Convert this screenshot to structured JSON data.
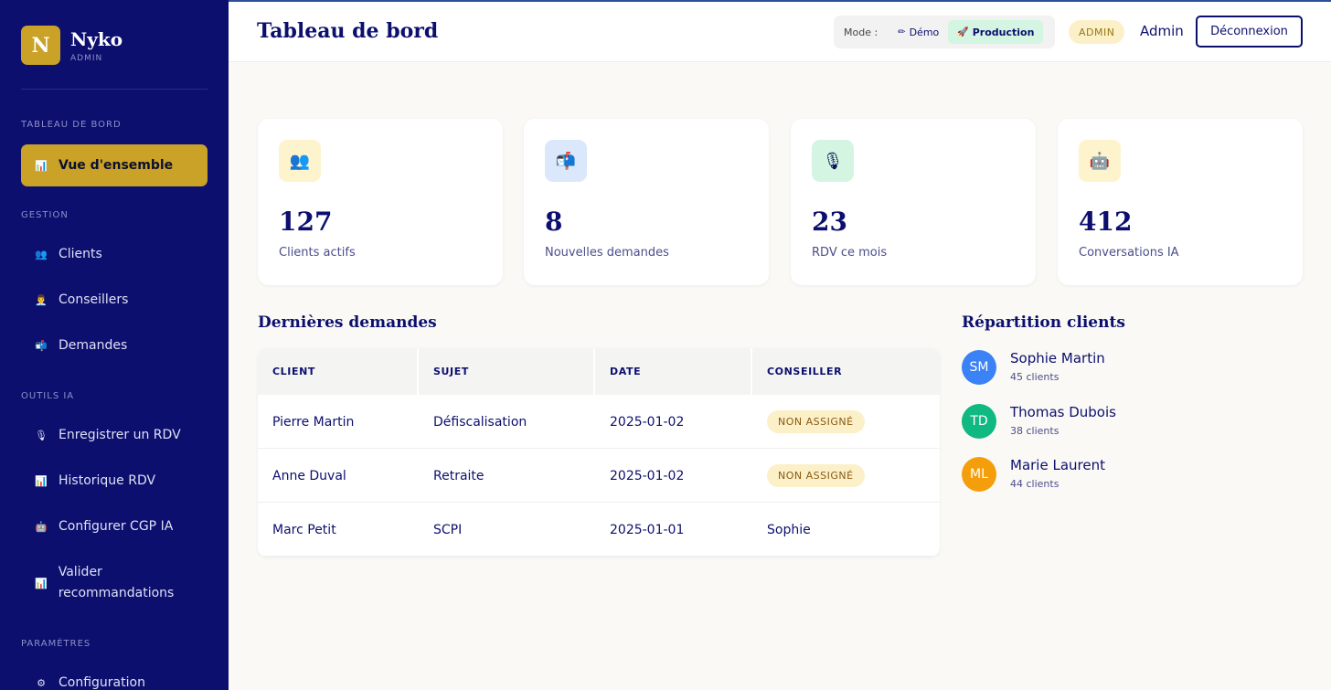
{
  "sidebar": {
    "brand_initial": "N",
    "brand_name": "Nyko",
    "brand_sub": "ADMIN",
    "sections": {
      "dashboard": "TABLEAU DE BORD",
      "gestion": "GESTION",
      "outils": "OUTILS IA",
      "parametres": "PARAMÈTRES"
    },
    "items": {
      "overview": {
        "icon": "📊",
        "label": "Vue d'ensemble"
      },
      "clients": {
        "icon": "👥",
        "label": "Clients"
      },
      "conseillers": {
        "icon": "👨‍💼",
        "label": "Conseillers"
      },
      "demandes": {
        "icon": "📬",
        "label": "Demandes"
      },
      "enregistrer": {
        "icon": "🎙",
        "label": "Enregistrer un RDV"
      },
      "historique": {
        "icon": "📊",
        "label": "Historique RDV"
      },
      "configurer": {
        "icon": "🤖",
        "label": "Configurer CGP IA"
      },
      "valider": {
        "icon": "📊",
        "label": "Valider recommandations"
      },
      "configuration": {
        "icon": "⚙",
        "label": "Configuration"
      }
    }
  },
  "header": {
    "title": "Tableau de bord",
    "mode_label": "Mode :",
    "mode_demo_icon": "✏",
    "mode_demo": "Démo",
    "mode_prod_icon": "🚀",
    "mode_prod": "Production",
    "badge": "ADMIN",
    "user": "Admin",
    "logout": "Déconnexion"
  },
  "stats": [
    {
      "icon": "👥",
      "value": "127",
      "label": "Clients actifs",
      "bg": "#fdf3cc"
    },
    {
      "icon": "📬",
      "value": "8",
      "label": "Nouvelles demandes",
      "bg": "#dbe8fb"
    },
    {
      "icon": "🎙",
      "value": "23",
      "label": "RDV ce mois",
      "bg": "#d4f5e2"
    },
    {
      "icon": "🤖",
      "value": "412",
      "label": "Conversations IA",
      "bg": "#fdf3cc"
    }
  ],
  "requests": {
    "title": "Dernières demandes",
    "columns": [
      "CLIENT",
      "SUJET",
      "DATE",
      "CONSEILLER"
    ],
    "rows": [
      {
        "client": "Pierre Martin",
        "subject": "Défiscalisation",
        "date": "2025-01-02",
        "advisor": "NON ASSIGNÉ"
      },
      {
        "client": "Anne Duval",
        "subject": "Retraite",
        "date": "2025-01-02",
        "advisor": "NON ASSIGNÉ"
      },
      {
        "client": "Marc Petit",
        "subject": "SCPI",
        "date": "2025-01-01",
        "advisor": "Sophie"
      }
    ]
  },
  "distribution": {
    "title": "Répartition clients",
    "items": [
      {
        "initials": "SM",
        "name": "Sophie Martin",
        "count": "45 clients",
        "color": "#3b82f6"
      },
      {
        "initials": "TD",
        "name": "Thomas Dubois",
        "count": "38 clients",
        "color": "#10b981"
      },
      {
        "initials": "ML",
        "name": "Marie Laurent",
        "count": "44 clients",
        "color": "#f59e0b"
      }
    ]
  }
}
